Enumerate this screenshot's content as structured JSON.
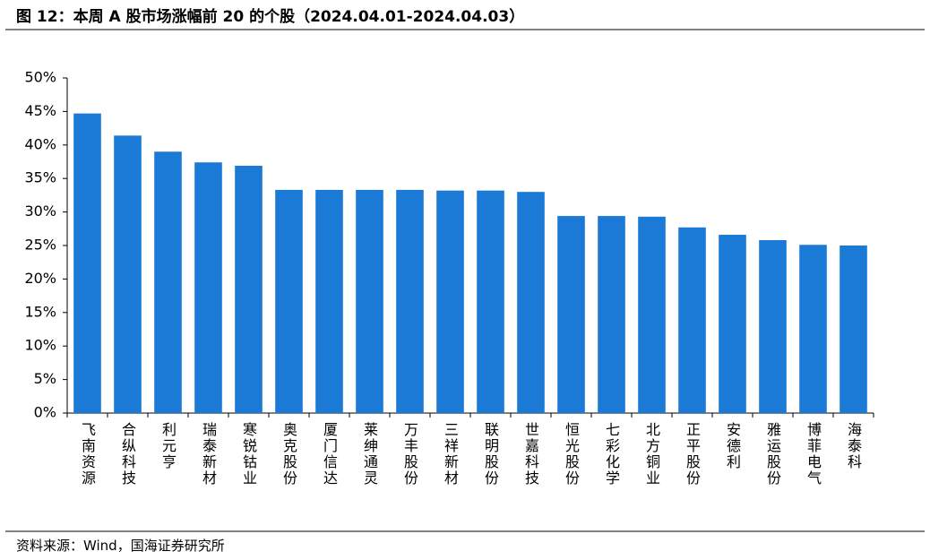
{
  "chart_data": {
    "type": "bar",
    "title": "图 12：本周 A 股市场涨幅前 20 的个股（2024.04.01-2024.04.03）",
    "categories": [
      "飞南资源",
      "合纵科技",
      "利元亨",
      "瑞泰新材",
      "寒锐钴业",
      "奥克股份",
      "厦门信达",
      "莱绅通灵",
      "万丰股份",
      "三祥新材",
      "联明股份",
      "世嘉科技",
      "恒光股份",
      "七彩化学",
      "北方铜业",
      "正平股份",
      "安德利",
      "雅运股份",
      "博菲电气",
      "海泰科"
    ],
    "values": [
      44.7,
      41.4,
      39.0,
      37.4,
      36.9,
      33.3,
      33.3,
      33.3,
      33.3,
      33.2,
      33.2,
      33.0,
      29.4,
      29.4,
      29.3,
      27.7,
      26.6,
      25.8,
      25.1,
      25.0
    ],
    "color": "#1a7ad6",
    "ylim": [
      0,
      50
    ],
    "yticks": [
      {
        "value": 0,
        "label": "0%"
      },
      {
        "value": 5,
        "label": "5%"
      },
      {
        "value": 10,
        "label": "10%"
      },
      {
        "value": 15,
        "label": "15%"
      },
      {
        "value": 20,
        "label": "20%"
      },
      {
        "value": 25,
        "label": "25%"
      },
      {
        "value": 30,
        "label": "30%"
      },
      {
        "value": 35,
        "label": "35%"
      },
      {
        "value": 40,
        "label": "40%"
      },
      {
        "value": 45,
        "label": "45%"
      },
      {
        "value": 50,
        "label": "50%"
      }
    ],
    "grid": false,
    "source": "资料来源：Wind，国海证券研究所"
  }
}
